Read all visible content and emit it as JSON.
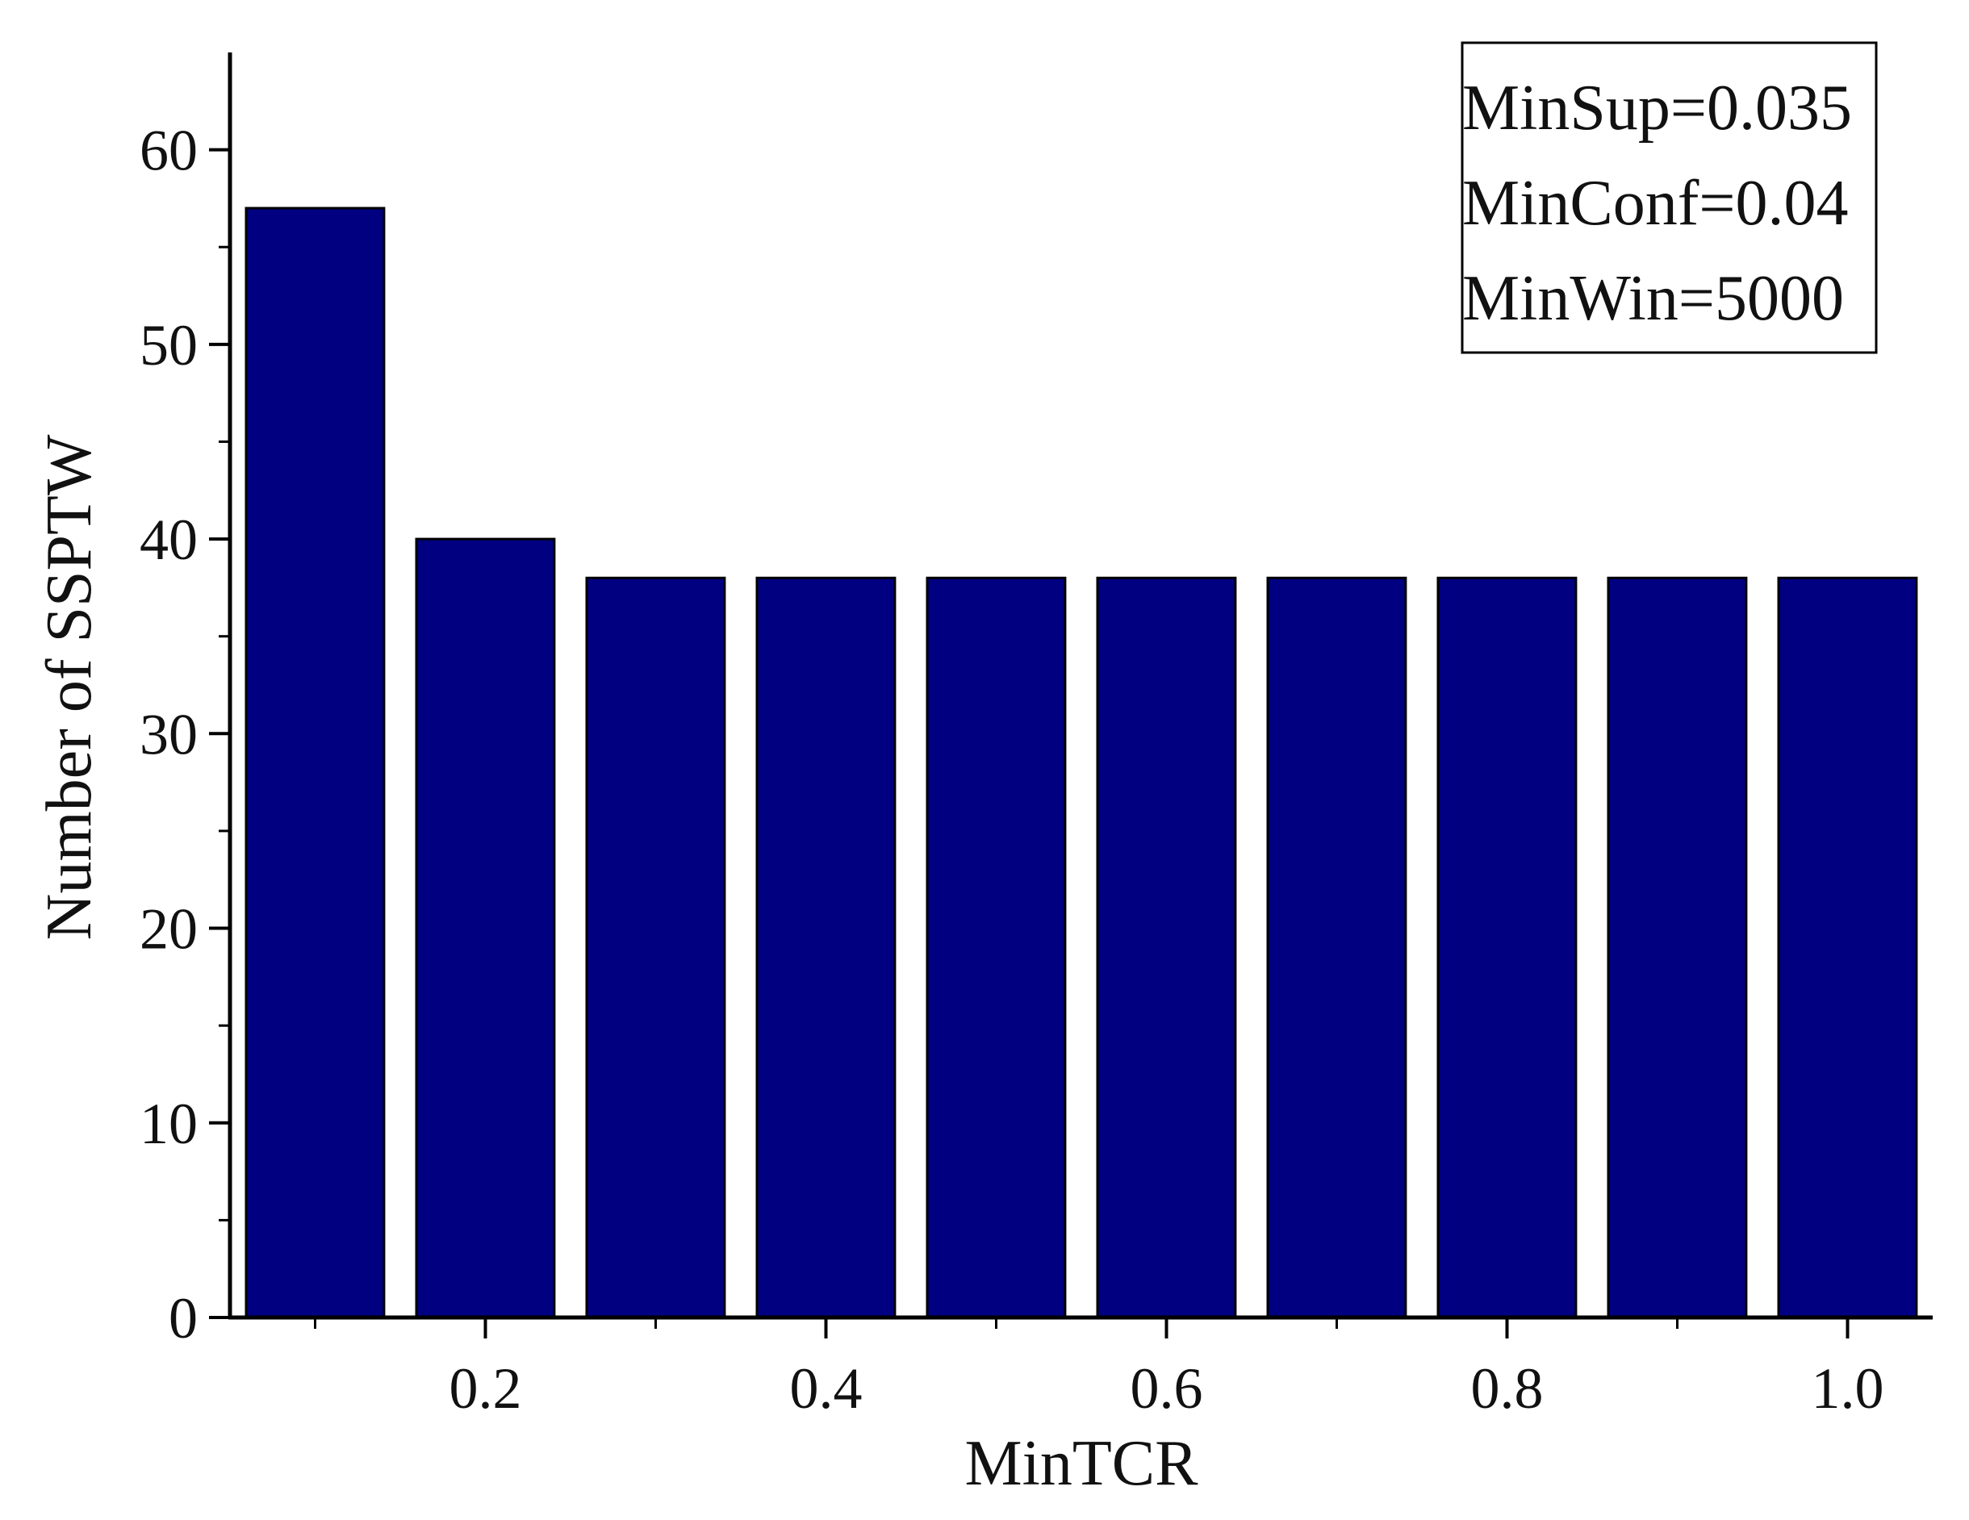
{
  "chart_data": {
    "type": "bar",
    "title": "",
    "xlabel": "MinTCR",
    "ylabel": "Number of SSPTW",
    "x": [
      0.1,
      0.2,
      0.3,
      0.4,
      0.5,
      0.6,
      0.7,
      0.8,
      0.9,
      1.0
    ],
    "values": [
      57,
      40,
      38,
      38,
      38,
      38,
      38,
      38,
      38,
      38
    ],
    "xlim": [
      0.05,
      1.05
    ],
    "ylim": [
      0,
      65
    ],
    "x_tick_labels": [
      "0.2",
      "0.4",
      "0.6",
      "0.8",
      "1.0"
    ],
    "y_tick_labels": [
      "0",
      "10",
      "20",
      "30",
      "40",
      "50",
      "60"
    ],
    "bar_color": "#000080",
    "grid": false,
    "legend": {
      "placement": "top-right",
      "lines": [
        "MinSup=0.035",
        "MinConf=0.04",
        "MinWin=5000"
      ]
    }
  }
}
